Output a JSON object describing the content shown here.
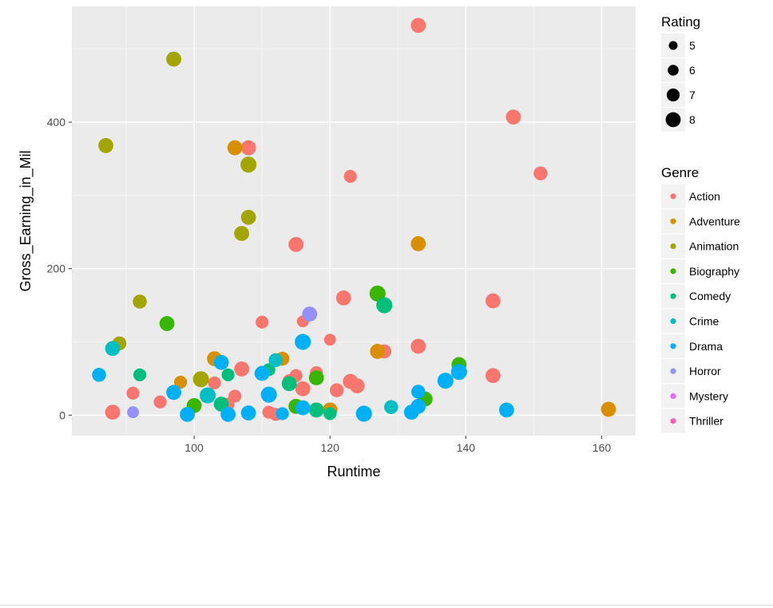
{
  "chart_data": {
    "type": "scatter",
    "xlabel": "Runtime",
    "ylabel": "Gross_Earning_in_Mil",
    "xlim": [
      82,
      165
    ],
    "ylim": [
      -28,
      558
    ],
    "x_ticks": [
      100,
      120,
      140,
      160
    ],
    "y_ticks": [
      0,
      200,
      400
    ],
    "grid": true,
    "legend_position": "right",
    "size_legend": {
      "title": "Rating",
      "values": [
        5,
        6,
        7,
        8
      ]
    },
    "color_legend": {
      "title": "Genre",
      "entries": [
        {
          "name": "Action",
          "color": "#F8766D"
        },
        {
          "name": "Adventure",
          "color": "#D89000"
        },
        {
          "name": "Animation",
          "color": "#A3A500"
        },
        {
          "name": "Biography",
          "color": "#39B600"
        },
        {
          "name": "Comedy",
          "color": "#00BF7D"
        },
        {
          "name": "Crime",
          "color": "#00BFC4"
        },
        {
          "name": "Drama",
          "color": "#00B0F6"
        },
        {
          "name": "Horror",
          "color": "#9590FF"
        },
        {
          "name": "Mystery",
          "color": "#E76BF3"
        },
        {
          "name": "Thriller",
          "color": "#FF62BC"
        }
      ]
    },
    "points": [
      {
        "x": 133,
        "y": 532,
        "genre": "Action",
        "rating": 8.0
      },
      {
        "x": 147,
        "y": 407,
        "genre": "Action",
        "rating": 8.0
      },
      {
        "x": 108,
        "y": 365,
        "genre": "Action",
        "rating": 8.0
      },
      {
        "x": 151,
        "y": 330,
        "genre": "Action",
        "rating": 7.5
      },
      {
        "x": 123,
        "y": 326,
        "genre": "Action",
        "rating": 7.0
      },
      {
        "x": 115,
        "y": 233,
        "genre": "Action",
        "rating": 8.0
      },
      {
        "x": 122,
        "y": 160,
        "genre": "Action",
        "rating": 8.0
      },
      {
        "x": 144,
        "y": 156,
        "genre": "Action",
        "rating": 8.0
      },
      {
        "x": 116,
        "y": 128,
        "genre": "Action",
        "rating": 6.5
      },
      {
        "x": 110,
        "y": 127,
        "genre": "Action",
        "rating": 7.0
      },
      {
        "x": 120,
        "y": 103,
        "genre": "Action",
        "rating": 6.5
      },
      {
        "x": 133,
        "y": 94,
        "genre": "Action",
        "rating": 8.0
      },
      {
        "x": 128,
        "y": 87,
        "genre": "Action",
        "rating": 7.5
      },
      {
        "x": 107,
        "y": 63,
        "genre": "Action",
        "rating": 8.0
      },
      {
        "x": 118,
        "y": 58,
        "genre": "Action",
        "rating": 7.0
      },
      {
        "x": 144,
        "y": 54,
        "genre": "Action",
        "rating": 8.0
      },
      {
        "x": 115,
        "y": 54,
        "genre": "Action",
        "rating": 7.0
      },
      {
        "x": 114,
        "y": 47,
        "genre": "Action",
        "rating": 7.0
      },
      {
        "x": 123,
        "y": 46,
        "genre": "Action",
        "rating": 8.0
      },
      {
        "x": 103,
        "y": 44,
        "genre": "Action",
        "rating": 7.0
      },
      {
        "x": 124,
        "y": 40,
        "genre": "Action",
        "rating": 8.0
      },
      {
        "x": 116,
        "y": 36,
        "genre": "Action",
        "rating": 8.0
      },
      {
        "x": 121,
        "y": 34,
        "genre": "Action",
        "rating": 7.5
      },
      {
        "x": 91,
        "y": 30,
        "genre": "Action",
        "rating": 7.0
      },
      {
        "x": 106,
        "y": 26,
        "genre": "Action",
        "rating": 7.0
      },
      {
        "x": 95,
        "y": 18,
        "genre": "Action",
        "rating": 7.0
      },
      {
        "x": 105,
        "y": 15,
        "genre": "Action",
        "rating": 7.0
      },
      {
        "x": 88,
        "y": 4,
        "genre": "Action",
        "rating": 8.0
      },
      {
        "x": 111,
        "y": 4,
        "genre": "Action",
        "rating": 7.0
      },
      {
        "x": 112,
        "y": 1,
        "genre": "Action",
        "rating": 7.0
      },
      {
        "x": 106,
        "y": 365,
        "genre": "Adventure",
        "rating": 8.0
      },
      {
        "x": 133,
        "y": 234,
        "genre": "Adventure",
        "rating": 8.0
      },
      {
        "x": 127,
        "y": 87,
        "genre": "Adventure",
        "rating": 8.0
      },
      {
        "x": 103,
        "y": 77,
        "genre": "Adventure",
        "rating": 8.0
      },
      {
        "x": 113,
        "y": 77,
        "genre": "Adventure",
        "rating": 7.5
      },
      {
        "x": 98,
        "y": 45,
        "genre": "Adventure",
        "rating": 7.0
      },
      {
        "x": 120,
        "y": 7,
        "genre": "Adventure",
        "rating": 8.0
      },
      {
        "x": 161,
        "y": 8,
        "genre": "Adventure",
        "rating": 8.0
      },
      {
        "x": 97,
        "y": 486,
        "genre": "Animation",
        "rating": 8.0
      },
      {
        "x": 87,
        "y": 368,
        "genre": "Animation",
        "rating": 8.0
      },
      {
        "x": 108,
        "y": 342,
        "genre": "Animation",
        "rating": 8.5
      },
      {
        "x": 108,
        "y": 270,
        "genre": "Animation",
        "rating": 8.0
      },
      {
        "x": 107,
        "y": 248,
        "genre": "Animation",
        "rating": 8.0
      },
      {
        "x": 92,
        "y": 155,
        "genre": "Animation",
        "rating": 7.5
      },
      {
        "x": 89,
        "y": 98,
        "genre": "Animation",
        "rating": 7.5
      },
      {
        "x": 101,
        "y": 49,
        "genre": "Animation",
        "rating": 8.5
      },
      {
        "x": 96,
        "y": 125,
        "genre": "Biography",
        "rating": 8.0
      },
      {
        "x": 127,
        "y": 166,
        "genre": "Biography",
        "rating": 8.5
      },
      {
        "x": 139,
        "y": 69,
        "genre": "Biography",
        "rating": 8.0
      },
      {
        "x": 118,
        "y": 51,
        "genre": "Biography",
        "rating": 8.0
      },
      {
        "x": 134,
        "y": 22,
        "genre": "Biography",
        "rating": 8.0
      },
      {
        "x": 100,
        "y": 13,
        "genre": "Biography",
        "rating": 8.0
      },
      {
        "x": 115,
        "y": 12,
        "genre": "Biography",
        "rating": 8.0
      },
      {
        "x": 128,
        "y": 150,
        "genre": "Comedy",
        "rating": 8.5
      },
      {
        "x": 92,
        "y": 55,
        "genre": "Comedy",
        "rating": 7.0
      },
      {
        "x": 105,
        "y": 55,
        "genre": "Comedy",
        "rating": 7.0
      },
      {
        "x": 111,
        "y": 62,
        "genre": "Comedy",
        "rating": 7.0
      },
      {
        "x": 114,
        "y": 43,
        "genre": "Comedy",
        "rating": 8.0
      },
      {
        "x": 104,
        "y": 15,
        "genre": "Comedy",
        "rating": 8.0
      },
      {
        "x": 118,
        "y": 7,
        "genre": "Comedy",
        "rating": 8.0
      },
      {
        "x": 120,
        "y": 2,
        "genre": "Comedy",
        "rating": 7.0
      },
      {
        "x": 88,
        "y": 91,
        "genre": "Crime",
        "rating": 8.0
      },
      {
        "x": 102,
        "y": 27,
        "genre": "Crime",
        "rating": 8.5
      },
      {
        "x": 112,
        "y": 75,
        "genre": "Crime",
        "rating": 7.5
      },
      {
        "x": 129,
        "y": 11,
        "genre": "Crime",
        "rating": 7.5
      },
      {
        "x": 104,
        "y": 72,
        "genre": "Drama",
        "rating": 8.0
      },
      {
        "x": 116,
        "y": 100,
        "genre": "Drama",
        "rating": 8.5
      },
      {
        "x": 86,
        "y": 55,
        "genre": "Drama",
        "rating": 7.5
      },
      {
        "x": 110,
        "y": 57,
        "genre": "Drama",
        "rating": 8.0
      },
      {
        "x": 139,
        "y": 59,
        "genre": "Drama",
        "rating": 8.5
      },
      {
        "x": 137,
        "y": 47,
        "genre": "Drama",
        "rating": 8.5
      },
      {
        "x": 133,
        "y": 32,
        "genre": "Drama",
        "rating": 7.5
      },
      {
        "x": 97,
        "y": 31,
        "genre": "Drama",
        "rating": 8.0
      },
      {
        "x": 111,
        "y": 28,
        "genre": "Drama",
        "rating": 8.5
      },
      {
        "x": 116,
        "y": 10,
        "genre": "Drama",
        "rating": 8.0
      },
      {
        "x": 133,
        "y": 12,
        "genre": "Drama",
        "rating": 8.0
      },
      {
        "x": 146,
        "y": 7,
        "genre": "Drama",
        "rating": 8.0
      },
      {
        "x": 132,
        "y": 4,
        "genre": "Drama",
        "rating": 8.0
      },
      {
        "x": 108,
        "y": 3,
        "genre": "Drama",
        "rating": 8.0
      },
      {
        "x": 105,
        "y": 1,
        "genre": "Drama",
        "rating": 8.0
      },
      {
        "x": 99,
        "y": 1,
        "genre": "Drama",
        "rating": 8.0
      },
      {
        "x": 113,
        "y": 2,
        "genre": "Drama",
        "rating": 7.0
      },
      {
        "x": 125,
        "y": 2,
        "genre": "Drama",
        "rating": 8.5
      },
      {
        "x": 117,
        "y": 138,
        "genre": "Horror",
        "rating": 8.0
      },
      {
        "x": 91,
        "y": 4,
        "genre": "Horror",
        "rating": 6.5
      }
    ]
  }
}
